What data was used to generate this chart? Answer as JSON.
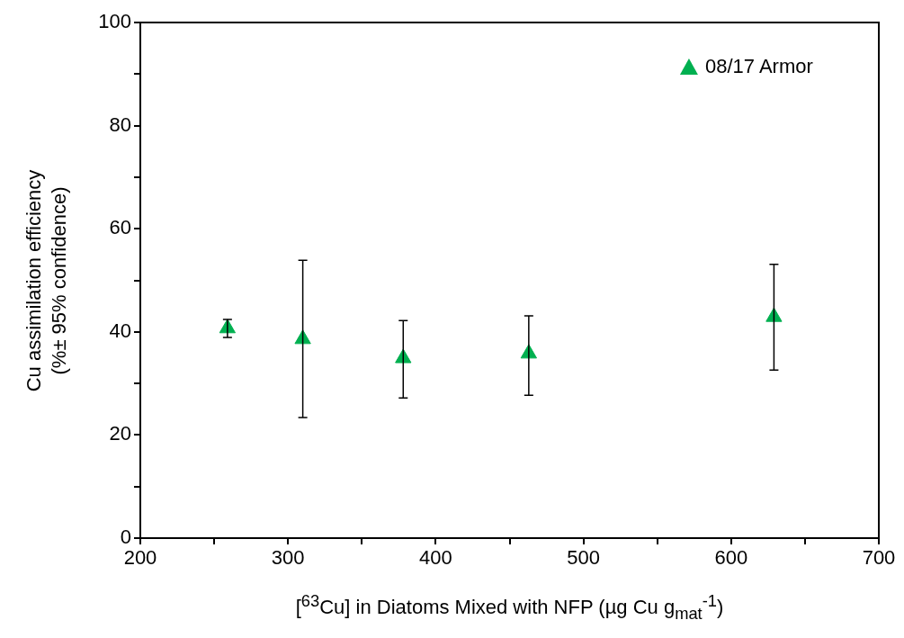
{
  "chart_data": {
    "type": "scatter",
    "xlabel": "[$^{63}$Cu] in Diatoms Mixed with NFP (µg Cu g$_{mat}$$^{-1}$)",
    "ylabel": "Cu assimilation efficiency\n(%± 95% confidence)",
    "x": [
      259,
      310,
      378,
      463,
      629
    ],
    "series": [
      {
        "name": "08/17 Armor",
        "color": "#00b050",
        "values": [
          40.7,
          38.6,
          34.9,
          35.8,
          42.9
        ],
        "errors": [
          [
            38.9,
            42.4
          ],
          [
            23.4,
            53.9
          ],
          [
            27.2,
            42.2
          ],
          [
            27.7,
            43.1
          ],
          [
            32.6,
            53.1
          ]
        ]
      }
    ],
    "xlim": [
      200,
      700
    ],
    "xticks": [
      200,
      {
        "value": 250,
        "label": null
      },
      300,
      {
        "value": 350,
        "label": null
      },
      400,
      {
        "value": 450,
        "label": null
      },
      500,
      {
        "value": 550,
        "label": null
      },
      600,
      {
        "value": 650,
        "label": null
      },
      700
    ],
    "ylim": [
      0,
      100
    ],
    "yticks": [
      0,
      {
        "value": 10,
        "label": null
      },
      20,
      {
        "value": 30,
        "label": null
      },
      40,
      {
        "value": 50,
        "label": null
      },
      60,
      {
        "value": 70,
        "label": null
      },
      80,
      {
        "value": 90,
        "label": null
      },
      100
    ],
    "legend": "top right",
    "marker": "triangle",
    "grid": false
  }
}
